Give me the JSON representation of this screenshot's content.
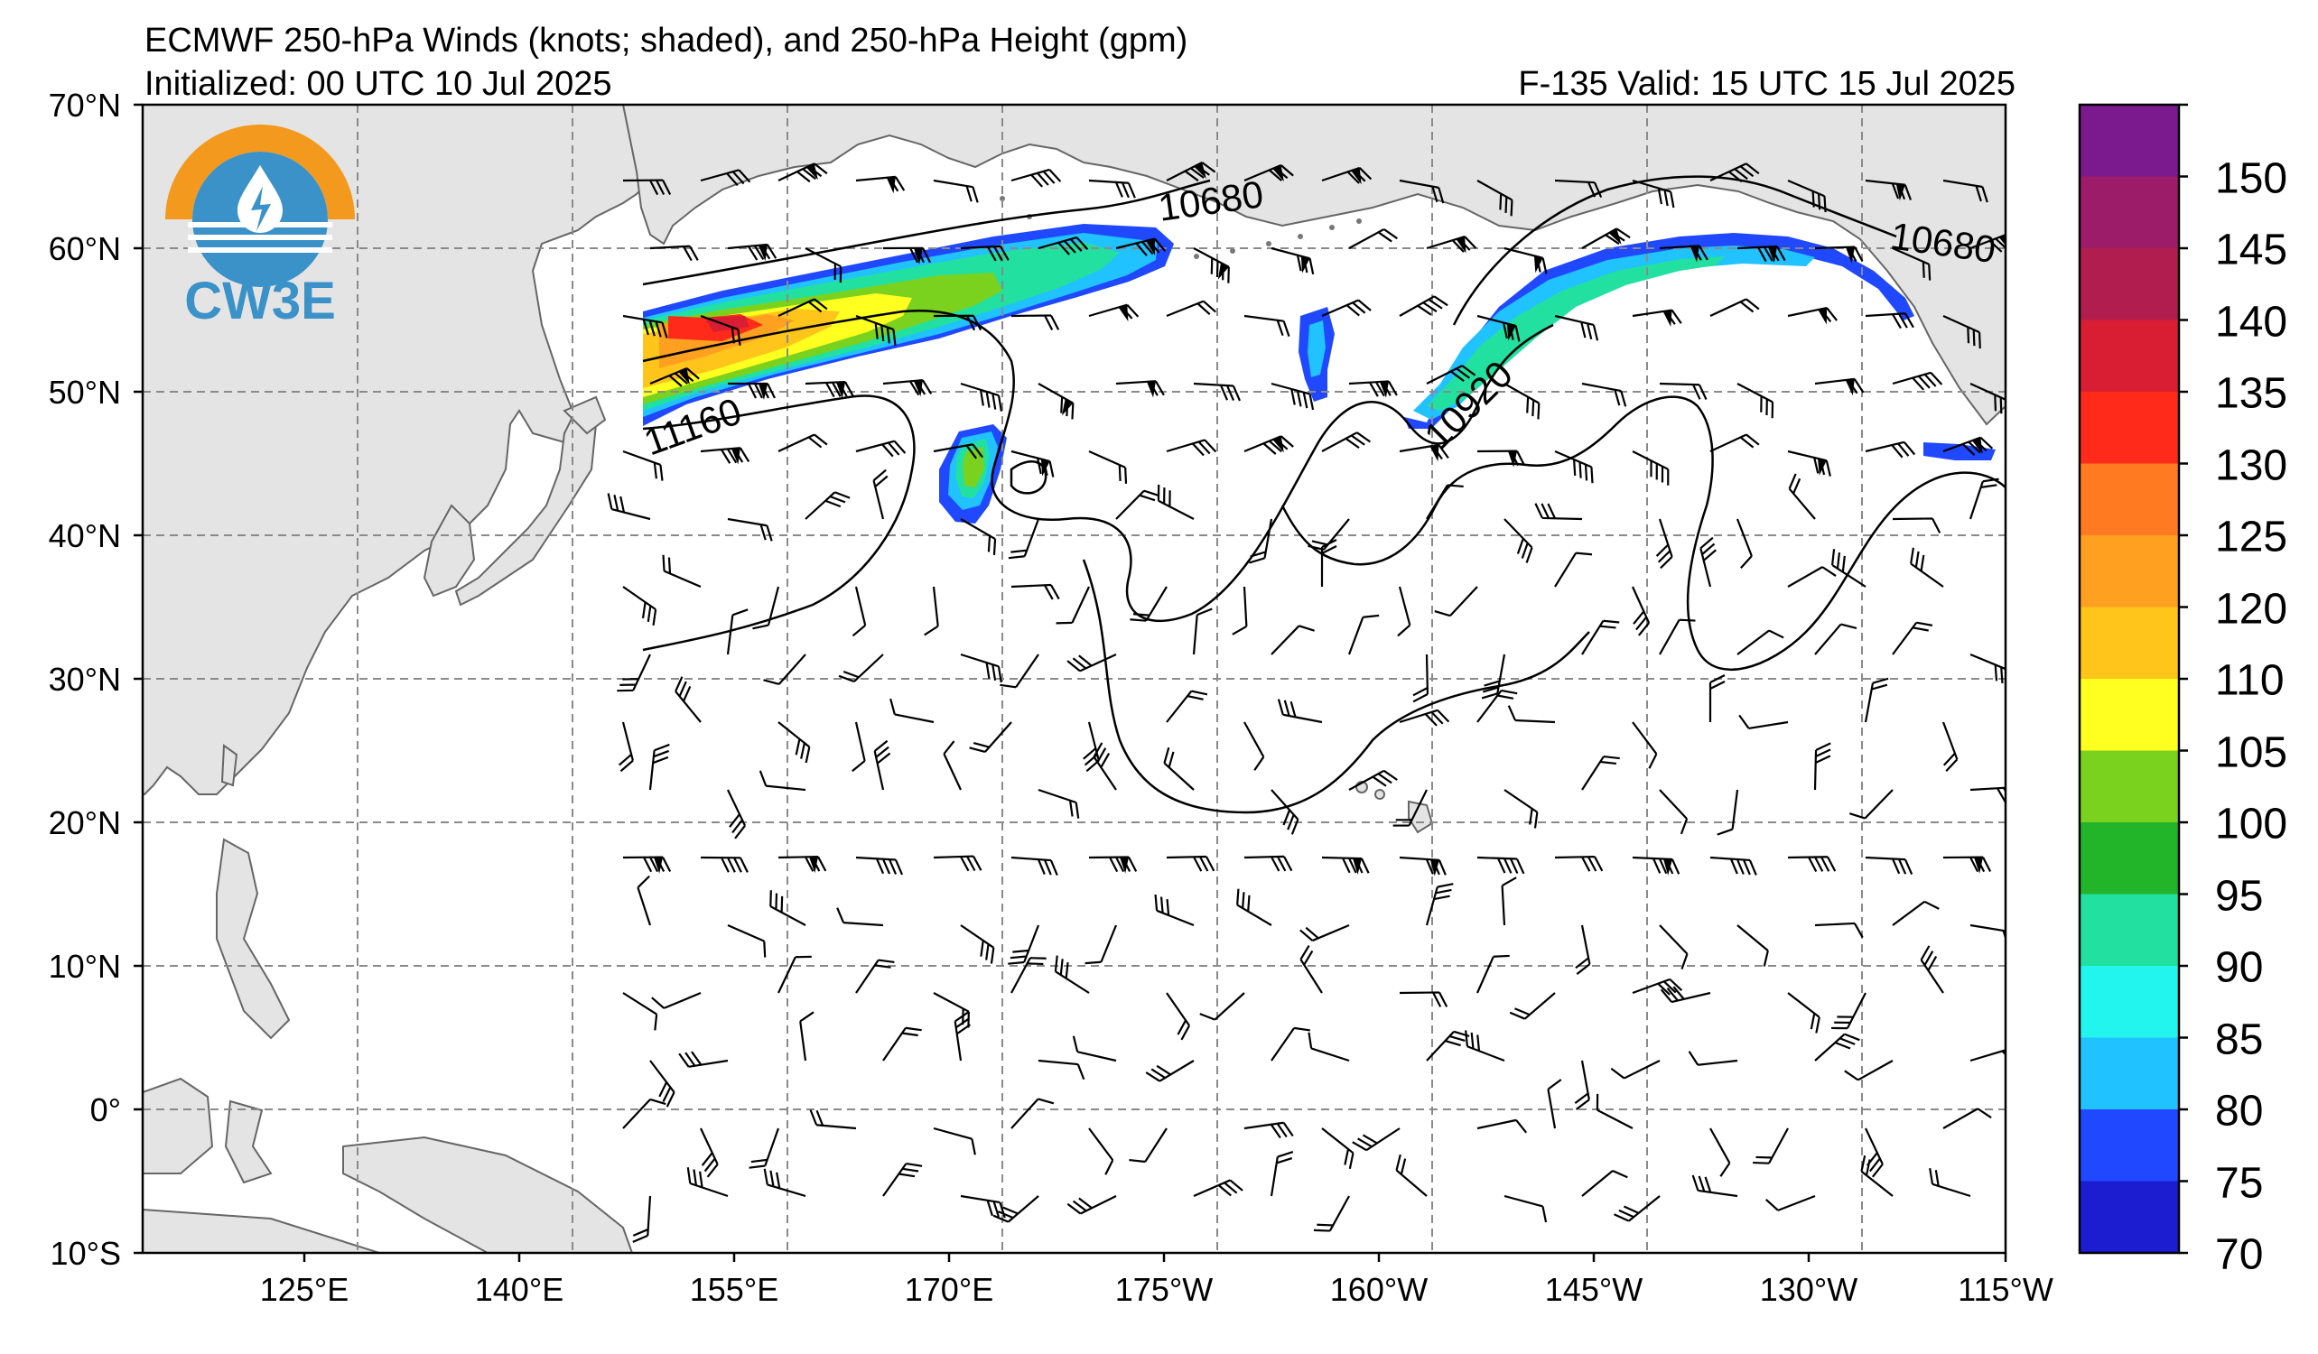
{
  "header": {
    "title": "ECMWF 250-hPa Winds (knots; shaded), and 250-hPa Height (gpm)",
    "initialized": "Initialized: 00 UTC 10 Jul 2025",
    "valid": "F-135  Valid: 15 UTC 15 Jul 2025"
  },
  "logo": {
    "text": "CW3E",
    "colors": [
      "#f39a1e",
      "#3a92c8"
    ]
  },
  "axes": {
    "lat_labels": [
      "70°N",
      "60°N",
      "50°N",
      "40°N",
      "30°N",
      "20°N",
      "10°N",
      "0°",
      "10°S"
    ],
    "lon_labels": [
      "125°E",
      "140°E",
      "155°E",
      "170°E",
      "175°W",
      "160°W",
      "145°W",
      "130°W",
      "115°W"
    ],
    "grid": true,
    "extent": {
      "lon_min": 115,
      "lon_max": 245,
      "lat_min": -10,
      "lat_max": 70
    }
  },
  "contours": {
    "labels": [
      "10680",
      "10680",
      "10920",
      "11160"
    ]
  },
  "colorbar": {
    "unit": "knots",
    "labels": [
      "150",
      "145",
      "140",
      "135",
      "130",
      "125",
      "120",
      "110",
      "105",
      "100",
      "95",
      "90",
      "85",
      "80",
      "75",
      "70"
    ],
    "colors": [
      "#7a1a8e",
      "#9c1c6a",
      "#b01d4e",
      "#d91e33",
      "#ff2a1a",
      "#ff7a20",
      "#ffa020",
      "#ffc51a",
      "#ffff20",
      "#7ad21e",
      "#22b52a",
      "#22e0a0",
      "#22f5ee",
      "#20c2ff",
      "#2048ff",
      "#1c1cd0"
    ]
  }
}
